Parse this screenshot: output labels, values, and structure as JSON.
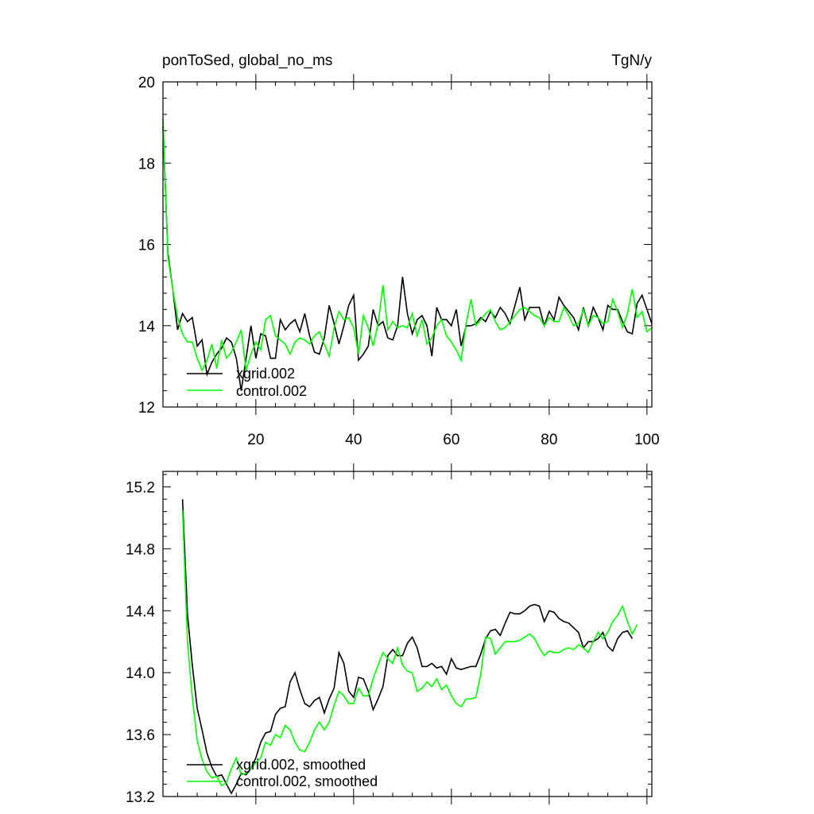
{
  "chart_data": [
    {
      "type": "line",
      "title": "ponToSed, global_no_ms",
      "units": "TgN/y",
      "xlim": [
        1,
        101
      ],
      "ylim": [
        12,
        20
      ],
      "x_ticks": [
        20,
        40,
        60,
        80,
        100
      ],
      "y_ticks": [
        12,
        14,
        16,
        18,
        20
      ],
      "y_tick_labels": [
        "12",
        "14",
        "16",
        "18",
        "20"
      ],
      "legend_placement": "bottom-left",
      "series": [
        {
          "name": "xgrid.002",
          "color": "#000000",
          "x0": 1,
          "values": [
            18.9,
            15.8,
            14.9,
            13.9,
            14.3,
            14.1,
            14.2,
            13.5,
            13.65,
            12.8,
            13.1,
            13.3,
            13.45,
            13.7,
            13.6,
            13.2,
            12.4,
            13.2,
            14.0,
            13.2,
            13.8,
            13.75,
            13.2,
            13.2,
            14.15,
            13.9,
            14.05,
            14.15,
            13.85,
            14.3,
            13.75,
            13.35,
            13.3,
            13.7,
            14.5,
            14.05,
            13.55,
            14.0,
            14.5,
            14.75,
            13.15,
            13.3,
            13.5,
            14.4,
            14.0,
            14.1,
            13.7,
            13.65,
            14.0,
            15.2,
            14.3,
            13.8,
            14.15,
            14.25,
            14.0,
            13.25,
            14.45,
            14.15,
            14.15,
            14.0,
            14.4,
            13.5,
            14.0,
            14.0,
            14.05,
            14.2,
            14.1,
            14.35,
            14.2,
            14.45,
            14.3,
            14.05,
            14.5,
            14.95,
            14.15,
            14.45,
            14.45,
            14.45,
            14.0,
            14.35,
            14.15,
            14.7,
            14.5,
            14.35,
            14.2,
            13.9,
            14.45,
            14.0,
            14.45,
            14.2,
            13.9,
            14.5,
            14.4,
            14.4,
            14.1,
            13.85,
            13.8,
            14.55,
            14.75,
            14.4,
            14.05
          ]
        },
        {
          "name": "control.002",
          "color": "#00ff00",
          "x0": 1,
          "values": [
            19.1,
            15.7,
            14.9,
            14.2,
            13.8,
            13.6,
            13.6,
            13.2,
            12.9,
            13.15,
            13.55,
            12.95,
            13.65,
            13.2,
            13.35,
            13.6,
            13.9,
            12.9,
            13.3,
            13.6,
            13.4,
            14.15,
            14.25,
            13.75,
            13.65,
            13.55,
            13.3,
            13.6,
            13.7,
            13.65,
            13.55,
            13.75,
            13.85,
            13.55,
            13.25,
            13.95,
            14.35,
            14.15,
            14.2,
            13.95,
            13.3,
            14.25,
            13.95,
            13.5,
            14.05,
            15.0,
            13.9,
            14.1,
            13.95,
            14.0,
            13.95,
            14.3,
            13.75,
            14.15,
            13.55,
            13.7,
            14.0,
            14.15,
            13.75,
            13.6,
            13.4,
            13.15,
            14.05,
            14.65,
            14.0,
            14.15,
            14.3,
            14.4,
            14.1,
            13.9,
            13.95,
            14.1,
            14.25,
            14.4,
            14.45,
            14.35,
            14.25,
            14.2,
            14.0,
            14.2,
            14.1,
            14.1,
            14.45,
            14.25,
            14.0,
            14.05,
            14.4,
            14.0,
            14.25,
            14.2,
            14.05,
            14.1,
            14.65,
            14.35,
            13.95,
            14.3,
            14.9,
            14.2,
            14.35,
            13.85,
            13.95
          ]
        }
      ]
    },
    {
      "type": "line",
      "title": "",
      "xlim": [
        1,
        101
      ],
      "ylim": [
        13.2,
        15.3
      ],
      "x_ticks": [
        20,
        40,
        60,
        80,
        100
      ],
      "y_ticks": [
        13.2,
        13.6,
        14.0,
        14.4,
        14.8,
        15.2
      ],
      "y_tick_labels": [
        "13.2",
        "13.6",
        "14.0",
        "14.4",
        "14.8",
        "15.2"
      ],
      "legend_placement": "bottom-left",
      "series": [
        {
          "name": "xgrid.002, smoothed",
          "color": "#000000",
          "x0": 5,
          "values": [
            15.12,
            14.38,
            14.05,
            13.77,
            13.63,
            13.48,
            13.39,
            13.33,
            13.34,
            13.28,
            13.22,
            13.28,
            13.35,
            13.34,
            13.38,
            13.45,
            13.55,
            13.61,
            13.62,
            13.73,
            13.77,
            13.78,
            13.94,
            14.0,
            13.89,
            13.8,
            13.78,
            13.82,
            13.84,
            13.74,
            13.83,
            13.9,
            14.13,
            14.06,
            13.88,
            13.84,
            13.97,
            13.96,
            13.88,
            13.76,
            13.83,
            13.91,
            14.11,
            14.15,
            14.11,
            14.11,
            14.19,
            14.23,
            14.16,
            14.04,
            14.04,
            14.06,
            14.03,
            14.04,
            13.99,
            14.09,
            14.03,
            14.02,
            14.03,
            14.04,
            14.04,
            14.12,
            14.22,
            14.27,
            14.28,
            14.24,
            14.32,
            14.39,
            14.38,
            14.38,
            14.4,
            14.43,
            14.44,
            14.43,
            14.33,
            14.4,
            14.39,
            14.35,
            14.33,
            14.32,
            14.29,
            14.26,
            14.16,
            14.2,
            14.2,
            14.22,
            14.26,
            14.17,
            14.14,
            14.22,
            14.26,
            14.27,
            14.22
          ]
        },
        {
          "name": "control.002, smoothed",
          "color": "#00ff00",
          "x0": 5,
          "values": [
            15.05,
            14.2,
            13.84,
            13.56,
            13.44,
            13.36,
            13.32,
            13.33,
            13.27,
            13.29,
            13.38,
            13.45,
            13.34,
            13.35,
            13.38,
            13.42,
            13.45,
            13.55,
            13.53,
            13.6,
            13.58,
            13.66,
            13.63,
            13.55,
            13.5,
            13.49,
            13.55,
            13.63,
            13.68,
            13.63,
            13.68,
            13.79,
            13.88,
            13.85,
            13.8,
            13.8,
            13.9,
            13.85,
            13.85,
            13.96,
            14.05,
            14.13,
            14.09,
            14.06,
            14.16,
            14.05,
            14.01,
            14.0,
            13.88,
            13.9,
            13.94,
            13.91,
            13.96,
            13.89,
            13.92,
            13.85,
            13.8,
            13.78,
            13.83,
            13.83,
            13.84,
            13.99,
            14.23,
            14.22,
            14.12,
            14.16,
            14.2,
            14.2,
            14.2,
            14.21,
            14.23,
            14.25,
            14.22,
            14.16,
            14.11,
            14.14,
            14.13,
            14.13,
            14.15,
            14.16,
            14.15,
            14.18,
            14.16,
            14.13,
            14.2,
            14.26,
            14.22,
            14.26,
            14.33,
            14.37,
            14.43,
            14.33,
            14.25,
            14.31
          ]
        }
      ]
    }
  ]
}
